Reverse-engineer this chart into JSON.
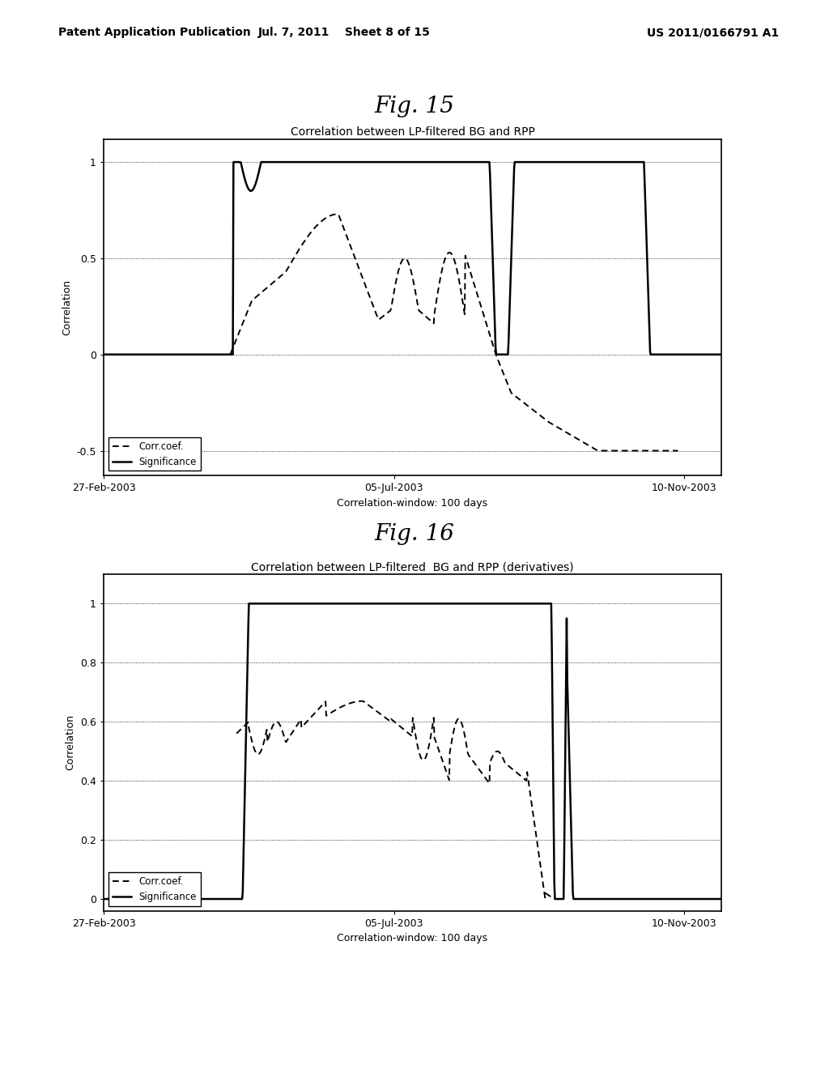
{
  "fig_title1": "Fig. 15",
  "fig_title2": "Fig. 16",
  "header_left": "Patent Application Publication",
  "header_mid": "Jul. 7, 2011    Sheet 8 of 15",
  "header_right": "US 2011/0166791 A1",
  "plot1_title": "Correlation between LP-filtered BG and RPP",
  "plot2_title": "Correlation between LP-filtered  BG and RPP (derivatives)",
  "xlabel": "Correlation-window: 100 days",
  "ylabel": "Correlation",
  "xtick_labels": [
    "27-Feb-2003",
    "05-Jul-2003",
    "10-Nov-2003"
  ],
  "background_color": "#ffffff",
  "line_color": "#000000",
  "header_fontsize": 10,
  "figtitle_fontsize": 20,
  "title_fontsize": 10,
  "tick_fontsize": 9,
  "label_fontsize": 9
}
